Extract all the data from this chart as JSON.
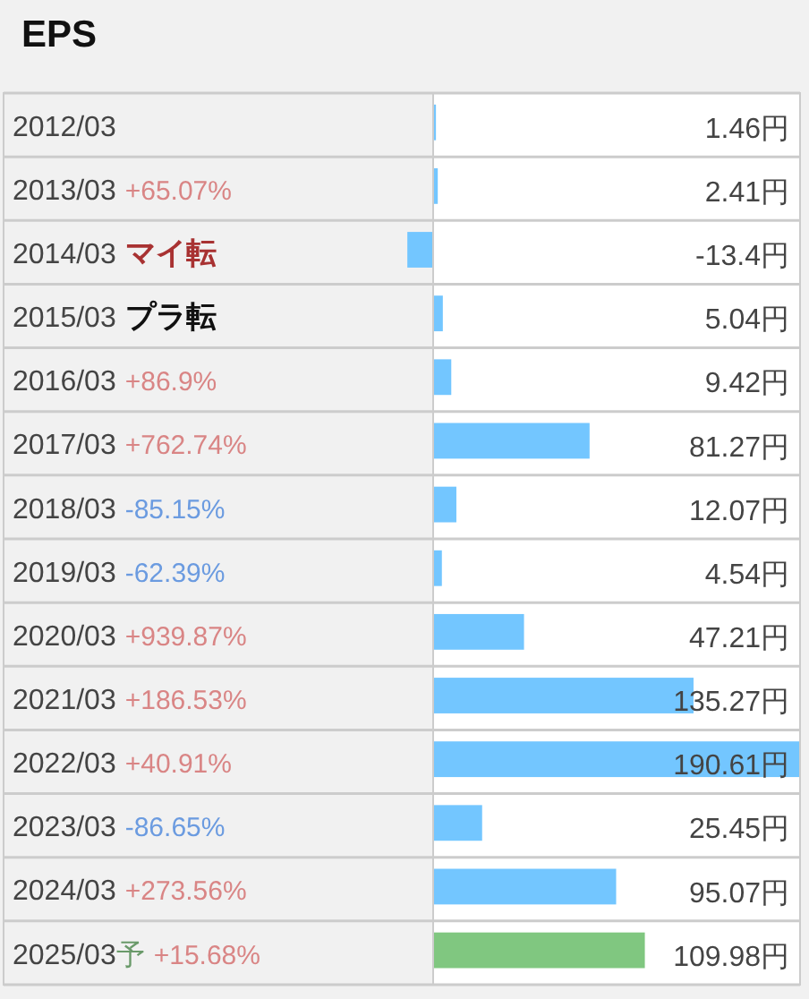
{
  "chart_data": {
    "type": "bar",
    "orientation": "horizontal",
    "title": "EPS",
    "categories": [
      "2012/03",
      "2013/03",
      "2014/03",
      "2015/03",
      "2016/03",
      "2017/03",
      "2018/03",
      "2019/03",
      "2020/03",
      "2021/03",
      "2022/03",
      "2023/03",
      "2024/03",
      "2025/03予"
    ],
    "values": [
      1.46,
      2.41,
      -13.4,
      5.04,
      9.42,
      81.27,
      12.07,
      4.54,
      47.21,
      135.27,
      190.61,
      25.45,
      95.07,
      109.98
    ],
    "colors": [
      "#73c6ff",
      "#73c6ff",
      "#73c6ff",
      "#73c6ff",
      "#73c6ff",
      "#73c6ff",
      "#73c6ff",
      "#73c6ff",
      "#73c6ff",
      "#73c6ff",
      "#73c6ff",
      "#73c6ff",
      "#73c6ff",
      "#80c780"
    ],
    "value_labels": [
      "1.46円",
      "2.41円",
      "-13.4円",
      "5.04円",
      "9.42円",
      "81.27円",
      "12.07円",
      "4.54円",
      "47.21円",
      "135.27円",
      "190.61円",
      "25.45円",
      "95.07円",
      "109.98円"
    ],
    "annotations": [
      "+65.07%",
      "マイ転",
      "プラ転",
      "+86.9%",
      "+762.74%",
      "-85.15%",
      "-62.39%",
      "+939.87%",
      "+186.53%",
      "+40.91%",
      "-86.65%",
      "+273.56%",
      "+15.68%"
    ]
  }
}
